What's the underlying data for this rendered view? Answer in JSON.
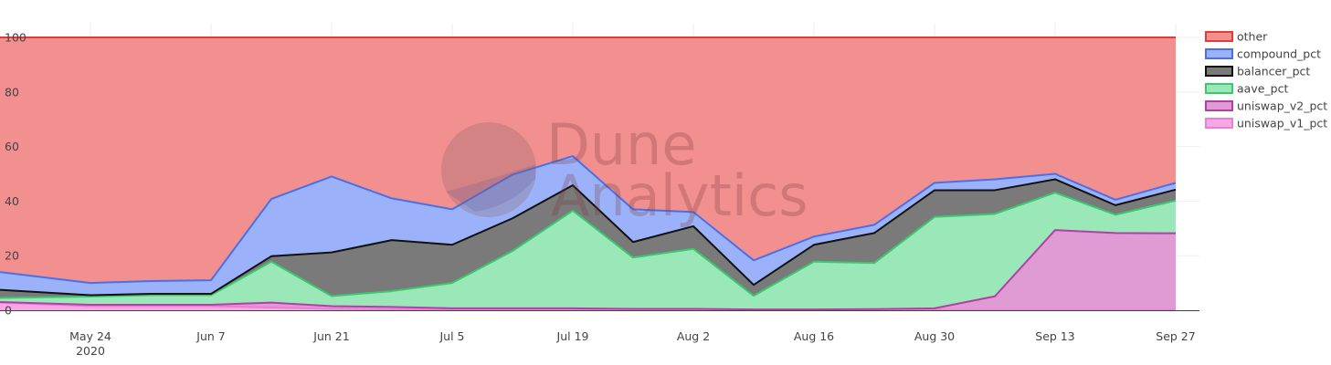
{
  "chart_data": {
    "type": "area",
    "stacked": true,
    "x": [
      "2020-05-17",
      "2020-05-24",
      "2020-05-31",
      "2020-06-07",
      "2020-06-14",
      "2020-06-21",
      "2020-06-28",
      "2020-07-05",
      "2020-07-12",
      "2020-07-19",
      "2020-07-26",
      "2020-08-02",
      "2020-08-09",
      "2020-08-16",
      "2020-08-23",
      "2020-08-30",
      "2020-09-06",
      "2020-09-13",
      "2020-09-20",
      "2020-09-27"
    ],
    "ylim": [
      0,
      100
    ],
    "yticks": [
      0,
      20,
      40,
      60,
      80,
      100
    ],
    "xticks": [
      {
        "date": "2020-05-24",
        "label": "May 24",
        "sublabel": "2020"
      },
      {
        "date": "2020-06-07",
        "label": "Jun 7",
        "sublabel": ""
      },
      {
        "date": "2020-06-21",
        "label": "Jun 21",
        "sublabel": ""
      },
      {
        "date": "2020-07-05",
        "label": "Jul 5",
        "sublabel": ""
      },
      {
        "date": "2020-07-19",
        "label": "Jul 19",
        "sublabel": ""
      },
      {
        "date": "2020-08-02",
        "label": "Aug 2",
        "sublabel": ""
      },
      {
        "date": "2020-08-16",
        "label": "Aug 16",
        "sublabel": ""
      },
      {
        "date": "2020-08-30",
        "label": "Aug 30",
        "sublabel": ""
      },
      {
        "date": "2020-09-13",
        "label": "Sep 13",
        "sublabel": ""
      },
      {
        "date": "2020-09-27",
        "label": "Sep 27",
        "sublabel": ""
      }
    ],
    "grid": true,
    "legend_position": "right",
    "series": [
      {
        "name": "uniswap_v1_pct",
        "color": "#f7a8e4",
        "line": "#e87fd6",
        "values": [
          2.8,
          1.5,
          1.5,
          1.5,
          1.0,
          0.5,
          0.3,
          0.2,
          0.1,
          0.1,
          0.1,
          0.1,
          0.1,
          0.1,
          0.1,
          0.1,
          0.1,
          0.1,
          0.1,
          0.1
        ]
      },
      {
        "name": "uniswap_v2_pct",
        "color": "#e09ad4",
        "line": "#b040a8",
        "values": [
          0.2,
          0.5,
          0.5,
          0.5,
          1.8,
          1.0,
          0.9,
          0.5,
          0.6,
          0.6,
          0.4,
          0.4,
          0.2,
          0.2,
          0.3,
          0.6,
          5.0,
          29.3,
          28.2,
          28.1
        ]
      },
      {
        "name": "aave_pct",
        "color": "#9ae8b8",
        "line": "#3cc870",
        "values": [
          1.5,
          3.0,
          3.5,
          3.5,
          15.0,
          3.7,
          5.8,
          9.3,
          21.0,
          35.8,
          18.8,
          22.0,
          5.0,
          17.5,
          16.9,
          33.5,
          30.2,
          13.7,
          6.7,
          12.0
        ]
      },
      {
        "name": "balancer_pct",
        "color": "#7a7a7a",
        "line": "#111111",
        "values": [
          3.0,
          0.5,
          0.5,
          0.5,
          2.0,
          16.0,
          18.7,
          14.0,
          12.0,
          9.3,
          5.7,
          8.3,
          4.0,
          6.2,
          11.0,
          9.8,
          8.7,
          4.9,
          3.5,
          4.0
        ]
      },
      {
        "name": "compound_pct",
        "color": "#9bb2fa",
        "line": "#4a70e8",
        "values": [
          6.5,
          4.5,
          4.7,
          5.0,
          21.0,
          27.8,
          15.3,
          13.0,
          16.0,
          10.7,
          12.0,
          5.2,
          9.0,
          3.0,
          3.0,
          2.7,
          4.0,
          2.0,
          2.0,
          2.5
        ]
      },
      {
        "name": "other",
        "color": "#f28f8f",
        "line": "#e03a3a",
        "values": [
          86.0,
          90.0,
          89.3,
          89.0,
          59.2,
          51.0,
          59.0,
          63.0,
          50.3,
          43.5,
          63.0,
          64.0,
          81.7,
          73.0,
          68.7,
          53.3,
          52.0,
          50.0,
          59.5,
          53.3
        ]
      }
    ],
    "legend_order": [
      "other",
      "compound_pct",
      "balancer_pct",
      "aave_pct",
      "uniswap_v2_pct",
      "uniswap_v1_pct"
    ]
  },
  "watermark": {
    "line1": "Dune",
    "line2": "Analytics"
  }
}
